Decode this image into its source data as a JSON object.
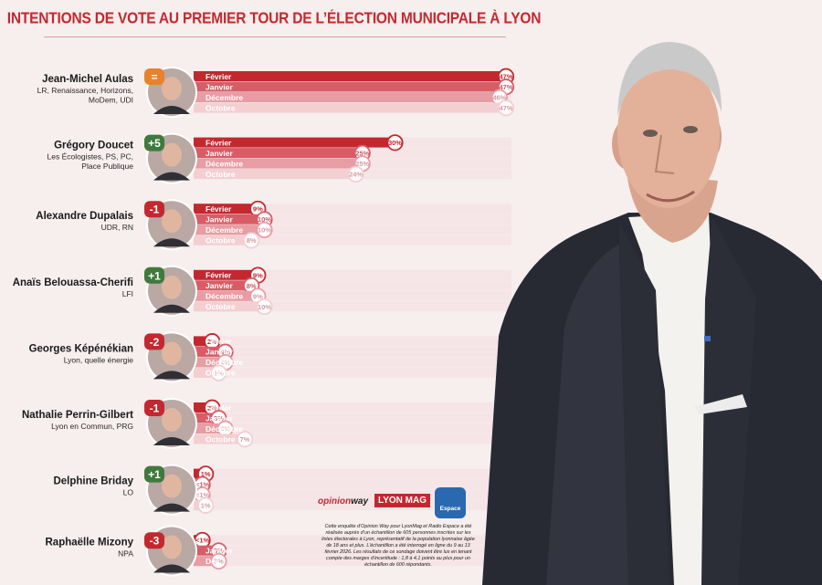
{
  "title": "INTENTIONS DE VOTE AU PREMIER TOUR DE L’ÉLECTION MUNICIPALE À LYON",
  "colors": {
    "title": "#c3282f",
    "months": [
      "#c3282f",
      "#d85c66",
      "#e89ca3",
      "#f3cfd2"
    ],
    "delta_up": "#3f7a3c",
    "delta_down": "#c3282f",
    "delta_eq": "#e8822b"
  },
  "chart_data": {
    "type": "bar",
    "orientation": "horizontal",
    "categories": [
      "Jean-Michel Aulas",
      "Grégory Doucet",
      "Alexandre Dupalais",
      "Anaïs Belouassa-Cherifi",
      "Georges Képénékian",
      "Nathalie Perrin-Gilbert",
      "Delphine Briday",
      "Raphaëlle Mizony"
    ],
    "title": "INTENTIONS DE VOTE AU PREMIER TOUR DE L’ÉLECTION MUNICIPALE À LYON",
    "xlim": [
      0,
      47
    ],
    "candidates": [
      {
        "name": "Jean-Michel Aulas",
        "party": [
          "LR, Renaissance, Horizons,",
          "MoDem, UDI"
        ],
        "delta": "=",
        "delta_dir": "eq",
        "rows": [
          {
            "label": "Février",
            "value": 47,
            "text": "47%"
          },
          {
            "label": "Janvier",
            "value": 47,
            "text": "47%"
          },
          {
            "label": "Décembre",
            "value": 46,
            "text": "46%"
          },
          {
            "label": "Octobre",
            "value": 47,
            "text": "47%"
          }
        ]
      },
      {
        "name": "Grégory Doucet",
        "party": [
          "Les Écologistes, PS, PC,",
          "Place Publique"
        ],
        "delta": "+5",
        "delta_dir": "up",
        "rows": [
          {
            "label": "Février",
            "value": 30,
            "text": "30%"
          },
          {
            "label": "Janvier",
            "value": 25,
            "text": "25%"
          },
          {
            "label": "Décembre",
            "value": 25,
            "text": "25%"
          },
          {
            "label": "Octobre",
            "value": 24,
            "text": "24%"
          }
        ]
      },
      {
        "name": "Alexandre Dupalais",
        "party": [
          "UDR, RN"
        ],
        "delta": "-1",
        "delta_dir": "down",
        "rows": [
          {
            "label": "Février",
            "value": 9,
            "text": "9%"
          },
          {
            "label": "Janvier",
            "value": 10,
            "text": "10%"
          },
          {
            "label": "Décembre",
            "value": 10,
            "text": "10%"
          },
          {
            "label": "Octobre",
            "value": 8,
            "text": "8%"
          }
        ]
      },
      {
        "name": "Anaïs Belouassa-Cherifi",
        "party": [
          "LFI"
        ],
        "delta": "+1",
        "delta_dir": "up",
        "rows": [
          {
            "label": "Février",
            "value": 9,
            "text": "9%"
          },
          {
            "label": "Janvier",
            "value": 8,
            "text": "8%"
          },
          {
            "label": "Décembre",
            "value": 9,
            "text": "9%"
          },
          {
            "label": "Octobre",
            "value": 10,
            "text": "10%"
          }
        ]
      },
      {
        "name": "Georges Képénékian",
        "party": [
          "Lyon, quelle énergie"
        ],
        "delta": "-2",
        "delta_dir": "down",
        "rows": [
          {
            "label": "Février",
            "value": 2,
            "text": "2%"
          },
          {
            "label": "Janvier",
            "value": 4,
            "text": "4%"
          },
          {
            "label": "Décembre",
            "value": 4,
            "text": "4%"
          },
          {
            "label": "Octobre",
            "value": 3,
            "text": "3%"
          }
        ]
      },
      {
        "name": "Nathalie Perrin-Gilbert",
        "party": [
          "Lyon en Commun, PRG"
        ],
        "delta": "-1",
        "delta_dir": "down",
        "rows": [
          {
            "label": "Février",
            "value": 2,
            "text": "2%"
          },
          {
            "label": "Janvier",
            "value": 3,
            "text": "3%"
          },
          {
            "label": "Décembre",
            "value": 4,
            "text": "4%"
          },
          {
            "label": "Octobre",
            "value": 7,
            "text": "7%"
          }
        ]
      },
      {
        "name": "Delphine Briday",
        "party": [
          "LO"
        ],
        "delta": "+1",
        "delta_dir": "up",
        "rows": [
          {
            "label": "",
            "value": 1,
            "text": "1%"
          },
          {
            "label": "",
            "value": 0.5,
            "text": "<1%"
          },
          {
            "label": "",
            "value": 0.5,
            "text": "<1%"
          },
          {
            "label": "",
            "value": 1,
            "text": "1%"
          }
        ]
      },
      {
        "name": "Raphaëlle Mizony",
        "party": [
          "NPA"
        ],
        "delta": "-3",
        "delta_dir": "down",
        "rows": [
          {
            "label": "",
            "value": 0.5,
            "text": "<1%"
          },
          {
            "label": "Janvier",
            "value": 3,
            "text": "3%"
          },
          {
            "label": "Déc.",
            "value": 3,
            "text": "3%"
          }
        ]
      }
    ]
  },
  "logos": {
    "opinionway_prefix": "opinion",
    "opinionway_suffix": "way",
    "lyonmag": "LYON MAG",
    "radio": "Espace"
  },
  "methodology": "Cette enquête d’Opinion Way pour LyonMag et Radio Espace a été réalisée auprès d’un échantillon de 605 personnes inscrites sur les listes électorales à Lyon, représentatif de la population lyonnaise âgée de 18 ans et plus. L’échantillon a été interrogé en ligne du 9 au 13 février 2026. Les résultats de ce sondage doivent être lus en tenant compte des marges d’incertitude : 1,8 à 4,1 points au plus pour un échantillon de 600 répondants."
}
